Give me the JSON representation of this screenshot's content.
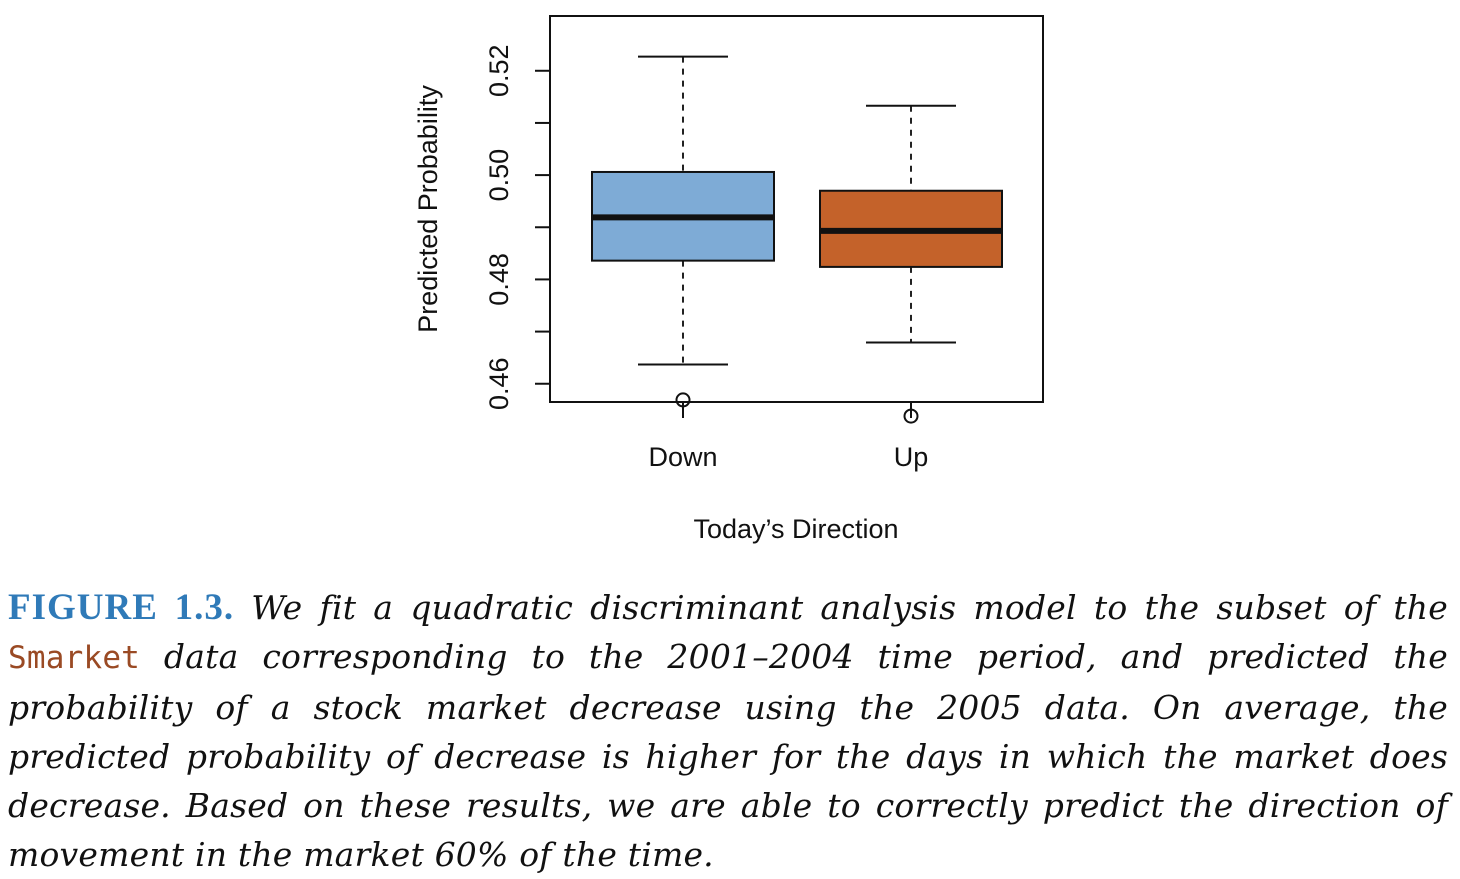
{
  "chart_data": {
    "type": "boxplot",
    "title": "",
    "xlabel": "Today’s Direction",
    "ylabel": "Predicted Probability",
    "ylim": [
      0.4565,
      0.5305
    ],
    "yticks": [
      0.46,
      0.48,
      0.5,
      0.52
    ],
    "yticklabels": [
      "0.46",
      "0.48",
      "0.50",
      "0.52"
    ],
    "categories": [
      "Down",
      "Up"
    ],
    "boxes": [
      {
        "name": "Down",
        "whisker_low": 0.4637,
        "q1": 0.4836,
        "median": 0.4919,
        "q3": 0.5006,
        "whisker_high": 0.5227,
        "outliers": [
          0.4569
        ],
        "color": "#7eabd6"
      },
      {
        "name": "Up",
        "whisker_low": 0.4679,
        "q1": 0.4824,
        "median": 0.4893,
        "q3": 0.497,
        "whisker_high": 0.5133,
        "outliers": [
          0.4538
        ],
        "color": "#c4622a"
      }
    ],
    "grid": false,
    "legend": "none"
  },
  "caption": {
    "label": "FIGURE 1.3.",
    "text_a": " We fit a quadratic discriminant analysis model to the subset of the ",
    "code": "Smarket",
    "text_b": " data corresponding to the 2001–2004 time period, and predicted the probability of a stock market decrease using the 2005 data. On average, the predicted probability of decrease is higher for the days in which the market does decrease. Based on these results, we are able to correctly predict the direction of movement in the market 60% of the time."
  }
}
